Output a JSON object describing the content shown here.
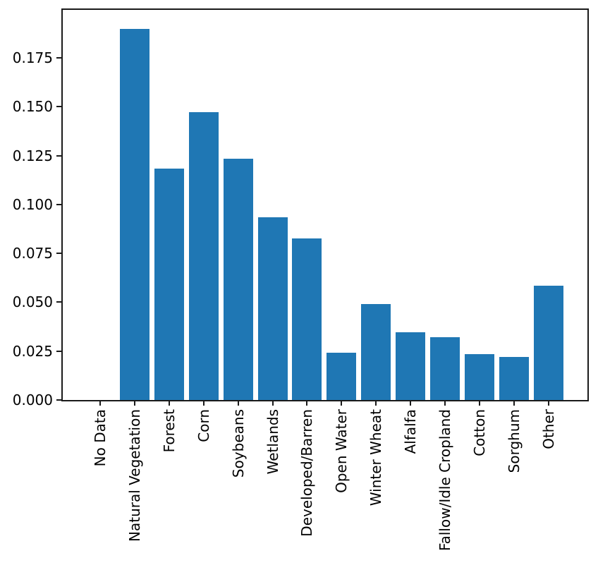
{
  "figure": {
    "background": "#ffffff"
  },
  "chart_data": {
    "type": "bar",
    "title": "",
    "xlabel": "",
    "ylabel": "",
    "categories": [
      "No Data",
      "Natural Vegetation",
      "Forest",
      "Corn",
      "Soybeans",
      "Wetlands",
      "Developed/Barren",
      "Open Water",
      "Winter Wheat",
      "Alfalfa",
      "Fallow/Idle Cropland",
      "Cotton",
      "Sorghum",
      "Other"
    ],
    "values": [
      0.0,
      0.1898,
      0.1183,
      0.1472,
      0.1234,
      0.0934,
      0.0826,
      0.0242,
      0.0491,
      0.0346,
      0.0321,
      0.0235,
      0.022,
      0.0585
    ],
    "ylim": [
      0,
      0.1995
    ],
    "yticks": [
      0.0,
      0.025,
      0.05,
      0.075,
      0.1,
      0.125,
      0.15,
      0.175
    ],
    "ytick_labels": [
      "0.000",
      "0.025",
      "0.050",
      "0.075",
      "0.100",
      "0.125",
      "0.150",
      "0.175"
    ],
    "xtick_rotation": 90,
    "bar_color": "#1f77b4",
    "axis_color": "#1a1a1a",
    "text_color": "#000000",
    "grid": false,
    "legend": "none"
  }
}
